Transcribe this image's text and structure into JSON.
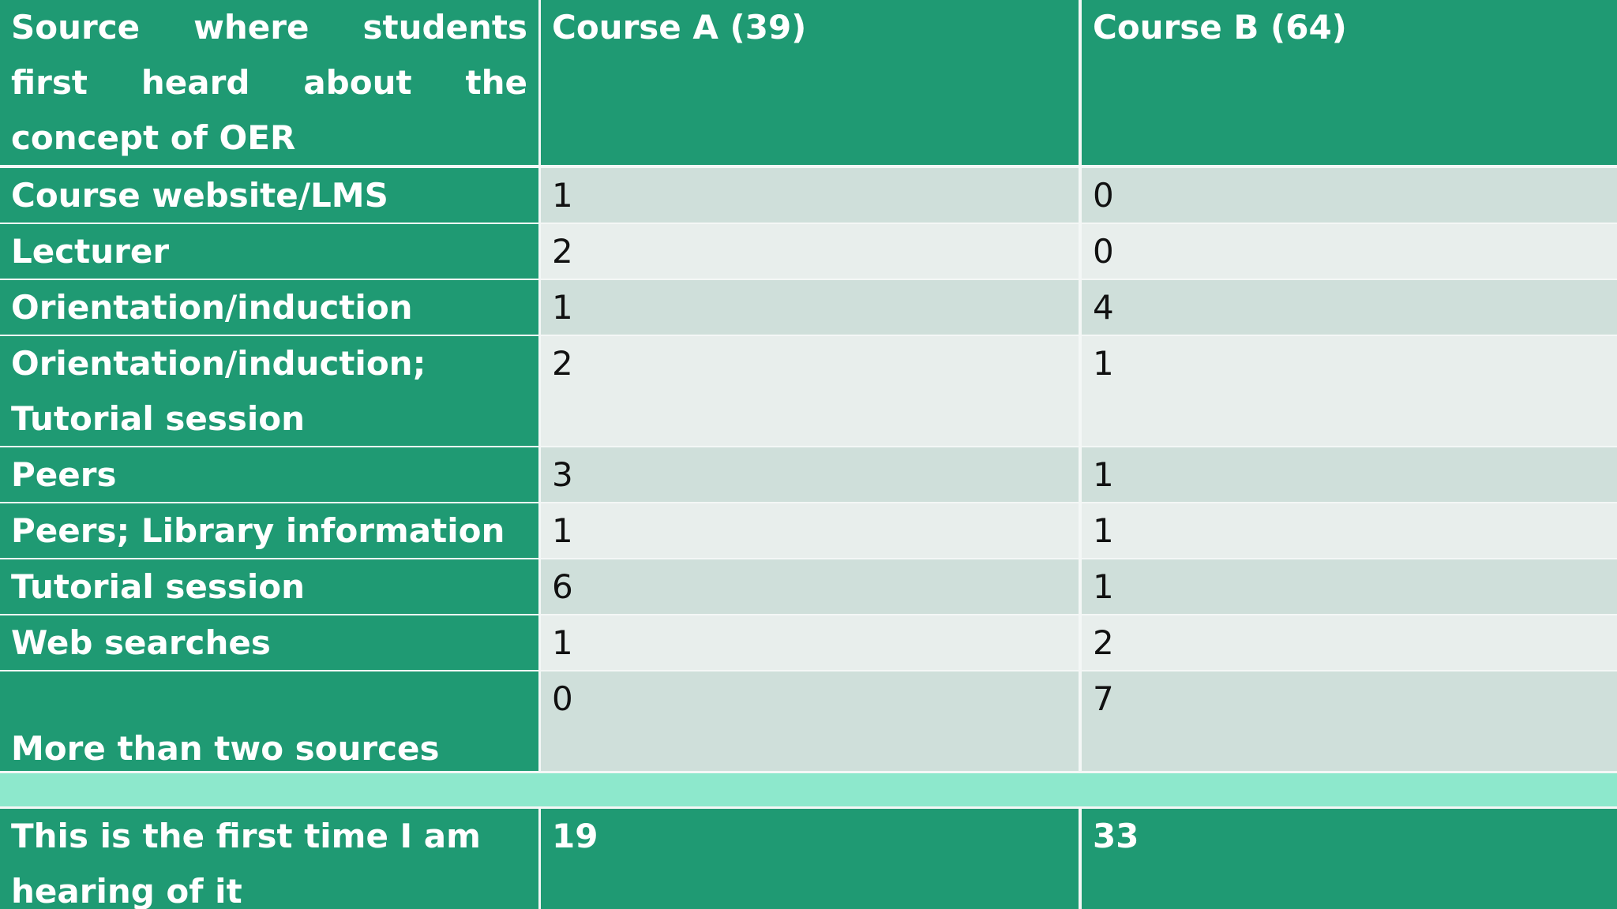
{
  "table": {
    "header": [
      "Source where students first heard about the concept of OER",
      "Course A (39)",
      "Course B (64)"
    ],
    "rows": [
      [
        "Course website/LMS",
        1,
        0
      ],
      [
        "Lecturer",
        2,
        0
      ],
      [
        "Orientation/induction",
        1,
        4
      ],
      [
        "Orientation/induction; Tutorial session",
        2,
        1
      ],
      [
        "Peers",
        3,
        1
      ],
      [
        "Peers; Library information",
        1,
        1
      ],
      [
        "Tutorial session",
        6,
        1
      ],
      [
        "Web searches",
        1,
        2
      ],
      [
        "More than two sources",
        0,
        7
      ]
    ],
    "footer": [
      "This is the first time I am hearing of it",
      19,
      33
    ]
  }
}
